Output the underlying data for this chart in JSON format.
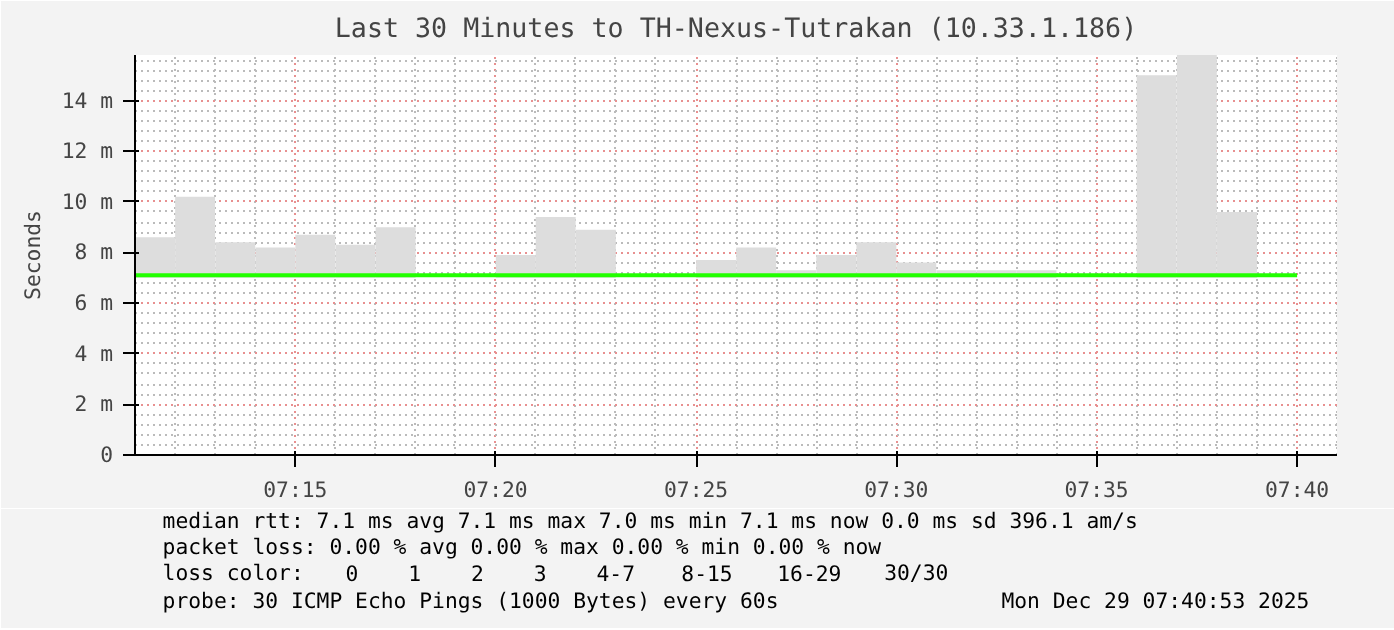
{
  "chart_data": {
    "type": "bar",
    "title": "Last 30 Minutes to TH-Nexus-Tutrakan (10.33.1.186)",
    "ylabel": "Seconds",
    "x": [
      7.1917,
      7.2083,
      7.225,
      7.2417,
      7.2583,
      7.275,
      7.2917,
      7.3083,
      7.325,
      7.3417,
      7.3583,
      7.375,
      7.3917,
      7.4083,
      7.425,
      7.4417,
      7.4583,
      7.475,
      7.4917,
      7.5083,
      7.525,
      7.5417,
      7.5583,
      7.575,
      7.5917,
      7.6083,
      7.625,
      7.6417
    ],
    "series": [
      {
        "color": "#dddddd",
        "base": [
          7.0,
          7.0,
          7.0,
          7.0,
          7.0,
          7.0,
          7.0,
          null,
          null,
          7.0,
          7.0,
          7.0,
          null,
          null,
          7.0,
          7.0,
          7.0,
          7.0,
          7.0,
          7.0,
          7.0,
          7.0,
          7.0,
          null,
          null,
          7.0,
          7.0,
          7.0
        ],
        "values": [
          1.6,
          3.2,
          1.4,
          1.2,
          1.7,
          1.3,
          2.0,
          null,
          null,
          0.9,
          2.4,
          1.9,
          null,
          null,
          0.7,
          1.2,
          0.3,
          0.9,
          1.4,
          0.6,
          0.3,
          0.3,
          0.3,
          null,
          null,
          8.0,
          8.8,
          2.6
        ]
      },
      {
        "type": "line",
        "color": "#22ff00",
        "x": [
          7.1833,
          7.6667
        ],
        "values": [
          7.1,
          7.1
        ]
      }
    ],
    "xlim": [
      7.1833,
      7.6833
    ],
    "xticks": [
      {
        "value": 7.25,
        "label": "07:15"
      },
      {
        "value": 7.3333,
        "label": "07:20"
      },
      {
        "value": 7.4167,
        "label": "07:25"
      },
      {
        "value": 7.5,
        "label": "07:30"
      },
      {
        "value": 7.5833,
        "label": "07:35"
      },
      {
        "value": 7.6667,
        "label": "07:40"
      }
    ],
    "ylim": [
      0,
      15.8
    ],
    "yticks": [
      0,
      {
        "value": 2,
        "label": "2 m"
      },
      {
        "value": 4,
        "label": "4 m"
      },
      {
        "value": 6,
        "label": "6 m"
      },
      {
        "value": 8,
        "label": "8 m"
      },
      {
        "value": 10,
        "label": "10 m"
      },
      {
        "value": 12,
        "label": "12 m"
      },
      {
        "value": 14,
        "label": "14 m"
      }
    ],
    "grid": true,
    "annotations": [
      "median rtt:  7.1 ms avg  7.1 ms max  7.0 ms min  7.1 ms now  0.0 ms sd  396.1   am/s",
      "packet loss: 0.00 % avg  0.00 % max  0.00 % min  0.00 % now",
      "loss color:",
      "0",
      "1",
      "2",
      "3",
      "4-7",
      "8-15",
      "16-29",
      "30/30",
      "probe:       30 ICMP Echo Pings (1000 Bytes) every 60s",
      "Mon Dec 29 07:40:53 2025"
    ]
  }
}
